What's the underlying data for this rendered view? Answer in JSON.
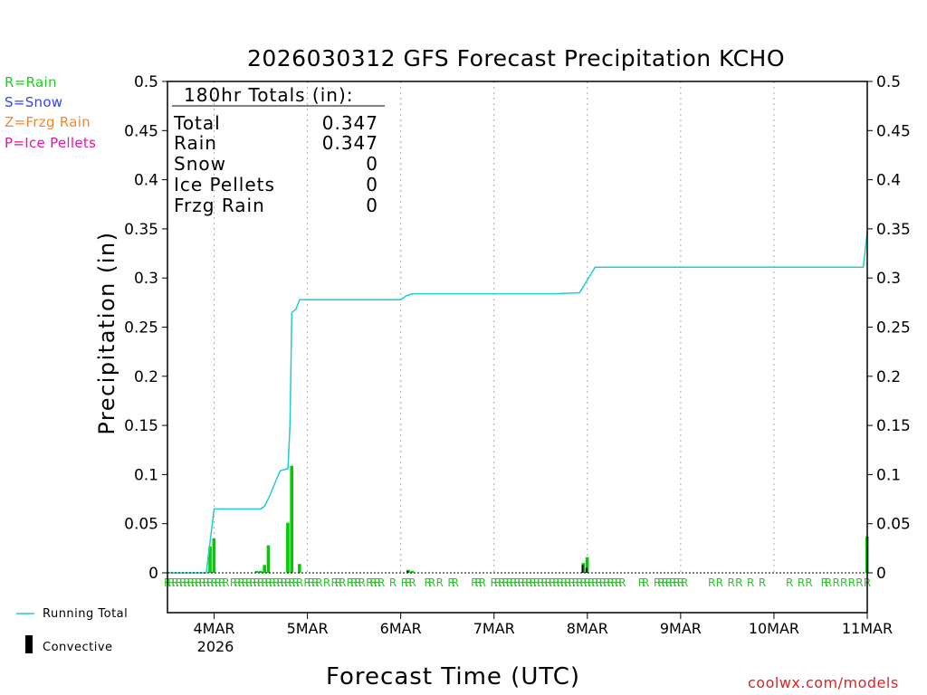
{
  "header": {
    "title": "2026030312 GFS Forecast Precipitation KCHO"
  },
  "type_legend": [
    {
      "label": "R=Rain",
      "color": "#22cc22"
    },
    {
      "label": "S=Snow",
      "color": "#3344ee"
    },
    {
      "label": "Z=Frzg Rain",
      "color": "#ee8833"
    },
    {
      "label": "P=Ice Pellets",
      "color": "#ee1199"
    }
  ],
  "totals": {
    "heading": "180hr Totals (in):",
    "rows": [
      {
        "label": "Total",
        "value": "0.347"
      },
      {
        "label": "Rain",
        "value": "0.347"
      },
      {
        "label": "Snow",
        "value": "0"
      },
      {
        "label": "Ice Pellets",
        "value": "0"
      },
      {
        "label": "Frzg Rain",
        "value": "0"
      }
    ]
  },
  "legend": {
    "running_total": "Running Total",
    "convective": "Convective",
    "running_color": "#22cccc",
    "convective_color": "#000000"
  },
  "axes": {
    "xlabel": "Forecast Time (UTC)",
    "ylabel": "Precipitation (in)",
    "year_label": "2026"
  },
  "credit": "coolwx.com/models",
  "chart_data": {
    "type": "bar",
    "title": "2026030312 GFS Forecast Precipitation KCHO",
    "xlabel": "Forecast Time (UTC)",
    "ylabel": "Precipitation (in)",
    "xlim_hours": [
      0,
      180
    ],
    "ylim": [
      0,
      0.5
    ],
    "yticks": [
      0,
      0.05,
      0.1,
      0.15,
      0.2,
      0.25,
      0.3,
      0.35,
      0.4,
      0.45,
      0.5
    ],
    "ytick_labels": [
      "0",
      "0.05",
      "0.1",
      "0.15",
      "0.2",
      "0.25",
      "0.3",
      "0.35",
      "0.4",
      "0.45",
      "0.5"
    ],
    "xticks": [
      {
        "hour": 12,
        "label": "4MAR"
      },
      {
        "hour": 36,
        "label": "5MAR"
      },
      {
        "hour": 60,
        "label": "6MAR"
      },
      {
        "hour": 84,
        "label": "7MAR"
      },
      {
        "hour": 108,
        "label": "8MAR"
      },
      {
        "hour": 132,
        "label": "9MAR"
      },
      {
        "hour": 156,
        "label": "10MAR"
      },
      {
        "hour": 180,
        "label": "11MAR"
      }
    ],
    "bar_color": "#00cc00",
    "bars": [
      {
        "hour": 11,
        "value": 0.027
      },
      {
        "hour": 12,
        "value": 0.035
      },
      {
        "hour": 23,
        "value": 0.002
      },
      {
        "hour": 24,
        "value": 0.002
      },
      {
        "hour": 25,
        "value": 0.008
      },
      {
        "hour": 26,
        "value": 0.028
      },
      {
        "hour": 31,
        "value": 0.051
      },
      {
        "hour": 32,
        "value": 0.109
      },
      {
        "hour": 34,
        "value": 0.009
      },
      {
        "hour": 62,
        "value": 0.003
      },
      {
        "hour": 63,
        "value": 0.002
      },
      {
        "hour": 107,
        "value": 0.01
      },
      {
        "hour": 108,
        "value": 0.016
      },
      {
        "hour": 180,
        "value": 0.037
      }
    ],
    "convective_bars": [
      {
        "hour": 107,
        "value": 0.008
      },
      {
        "hour": 108,
        "value": 0.005
      },
      {
        "hour": 62,
        "value": 0.002
      }
    ],
    "running_total": {
      "name": "Running Total",
      "hours": [
        0,
        10,
        12,
        21,
        24,
        25,
        26,
        29,
        30,
        31,
        31.5,
        32,
        33,
        34,
        36,
        60,
        61.5,
        63,
        66,
        100,
        106,
        108,
        110,
        120,
        179,
        180
      ],
      "values": [
        0,
        0,
        0.065,
        0.065,
        0.065,
        0.068,
        0.076,
        0.104,
        0.105,
        0.106,
        0.15,
        0.265,
        0.268,
        0.278,
        0.278,
        0.278,
        0.282,
        0.284,
        0.284,
        0.284,
        0.285,
        0.298,
        0.311,
        0.311,
        0.311,
        0.347
      ]
    },
    "ptype_markers": {
      "symbol": "R",
      "hours": [
        0,
        1,
        2,
        3,
        4,
        5,
        6,
        7,
        8,
        9,
        10,
        11,
        12,
        13,
        14,
        15,
        17,
        18,
        19,
        20,
        21,
        22,
        23,
        24,
        25,
        26,
        27,
        28,
        29,
        30,
        31,
        32,
        33,
        34,
        36,
        37,
        38,
        39,
        41,
        43,
        44,
        45,
        47,
        48,
        49,
        50,
        52,
        53,
        54,
        55,
        58,
        61,
        62,
        63,
        67,
        68,
        70,
        73,
        74,
        79,
        80,
        81,
        84,
        85,
        86,
        87,
        88,
        89,
        90,
        91,
        92,
        93,
        94,
        95,
        96,
        97,
        98,
        99,
        100,
        101,
        102,
        103,
        104,
        105,
        106,
        107,
        108,
        109,
        110,
        111,
        112,
        113,
        114,
        115,
        116,
        117,
        122,
        123,
        126,
        127,
        128,
        129,
        130,
        131,
        132,
        133,
        140,
        142,
        145,
        147,
        150,
        153,
        160,
        163,
        165,
        169,
        170,
        172,
        174,
        176,
        178,
        180
      ]
    }
  }
}
